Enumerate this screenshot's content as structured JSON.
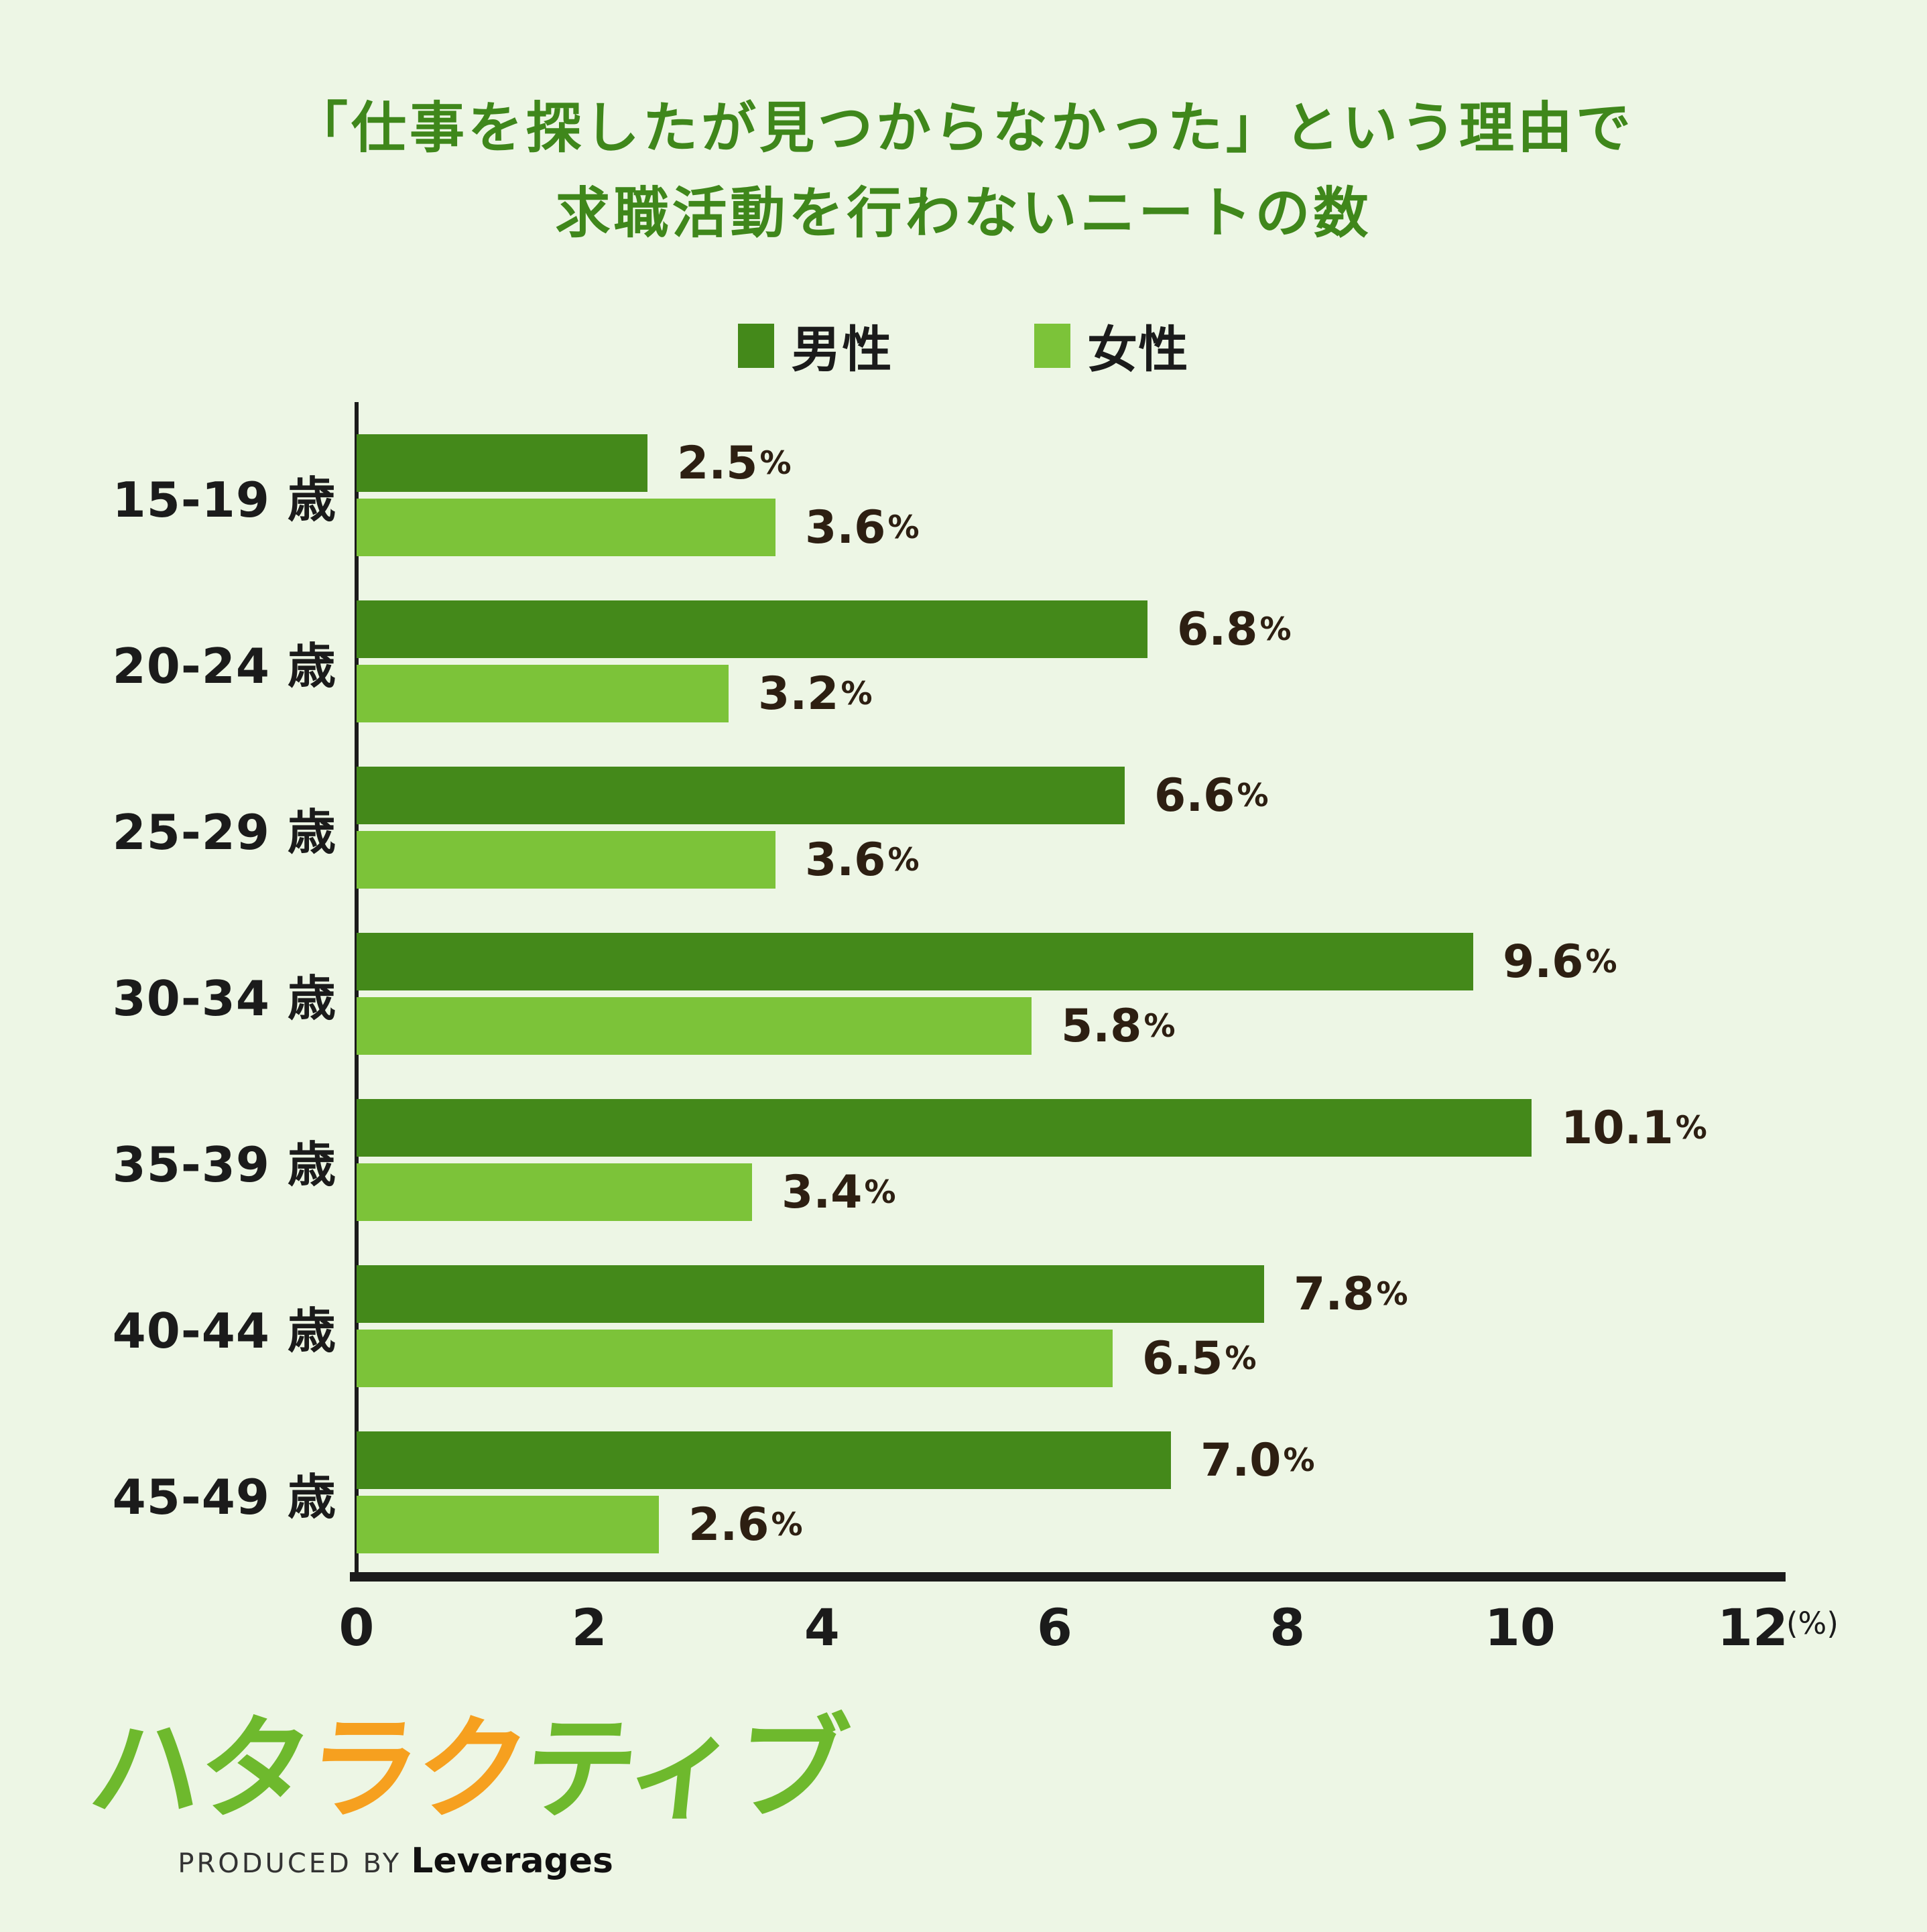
{
  "header": {
    "line1": "「仕事を探したが見つからなかった」という理由で",
    "line2": "求職活動を行わないニートの数"
  },
  "legend": {
    "male_label": "男性",
    "female_label": "女性"
  },
  "axis": {
    "unit_label": "(%)",
    "percent_symbol": "%"
  },
  "colors": {
    "background": "#EDF6E5",
    "male": "#44891A",
    "female": "#7CC339",
    "title": "#3F871B",
    "value_text": "#2D1F12",
    "axis": "#1B1B1B",
    "logo_green": "#6EB92D",
    "logo_orange": "#F6A01F"
  },
  "logo": {
    "brand_part1": "ハタ",
    "brand_part2": "ラク",
    "brand_part3": "ティブ",
    "produced_by": "PRODUCED BY",
    "company": "Leverages"
  },
  "chart_data": {
    "type": "bar",
    "orientation": "horizontal",
    "title": "「仕事を探したが見つからなかった」という理由で求職活動を行わないニートの数",
    "categories": [
      "15-19 歳",
      "20-24 歳",
      "25-29 歳",
      "30-34 歳",
      "35-39 歳",
      "40-44 歳",
      "45-49 歳"
    ],
    "series": [
      {
        "name": "男性",
        "color": "#44891A",
        "values": [
          2.5,
          6.8,
          6.6,
          9.6,
          10.1,
          7.8,
          7.0
        ]
      },
      {
        "name": "女性",
        "color": "#7CC339",
        "values": [
          3.6,
          3.2,
          3.6,
          5.8,
          3.4,
          6.5,
          2.6
        ]
      }
    ],
    "value_labels": {
      "男性": [
        "2.5%",
        "6.8%",
        "6.6%",
        "9.6%",
        "10.1%",
        "7.8%",
        "7.0%"
      ],
      "女性": [
        "3.6%",
        "3.2%",
        "3.6%",
        "5.8%",
        "3.4%",
        "6.5%",
        "2.6%"
      ]
    },
    "xlabel": "(%)",
    "ylabel": "",
    "xlim": [
      0,
      12
    ],
    "xticks": [
      0,
      2,
      4,
      6,
      8,
      10,
      12
    ],
    "grid": false,
    "legend_position": "top",
    "data_labels": true
  }
}
